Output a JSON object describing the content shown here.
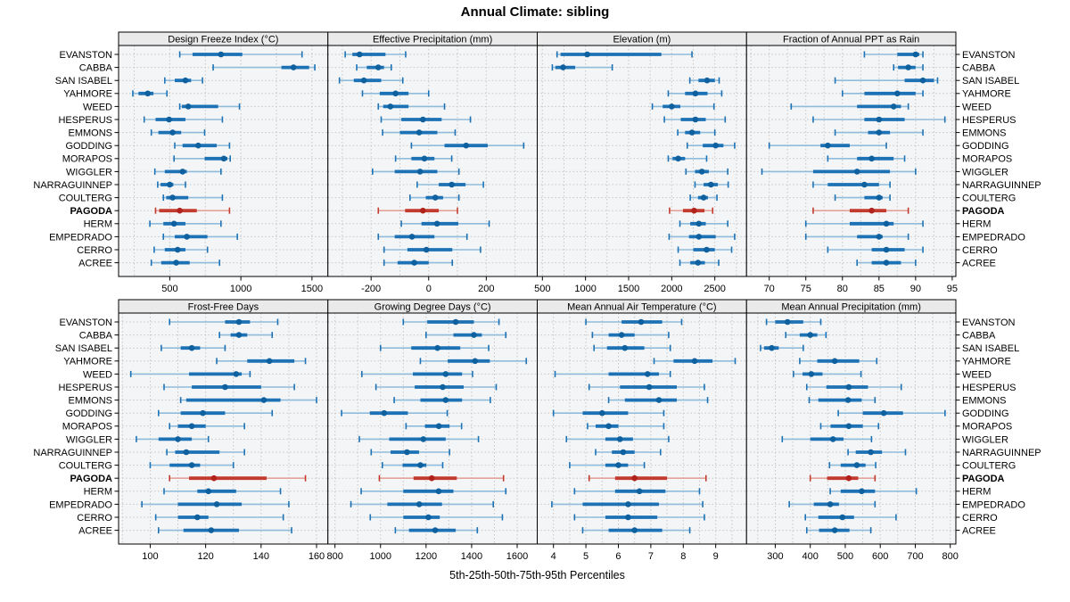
{
  "title": "Annual Climate: sibling",
  "caption": "5th-25th-50th-75th-95th Percentiles",
  "stations": [
    "EVANSTON",
    "CABBA",
    "SAN ISABEL",
    "YAHMORE",
    "WEED",
    "HESPERUS",
    "EMMONS",
    "GODDING",
    "MORAPOS",
    "WIGGLER",
    "NARRAGUINNEP",
    "COULTERG",
    "PAGODA",
    "HERM",
    "EMPEDRADO",
    "CERRO",
    "ACREE"
  ],
  "highlight_station": "PAGODA",
  "colors": {
    "blue": "#1c72b5",
    "blue_dot": "#0e609e",
    "blue_light": "#8fbcdc",
    "red": "#c23b2e",
    "red_dot": "#b1221c",
    "red_light": "#e5a29a",
    "panel_bg": "#f4f5f6",
    "strip_bg": "#eaeaea",
    "grid": "#c6c6c6",
    "frame": "#000000"
  },
  "chart_data": [
    {
      "type": "percentile-dotplot",
      "slug": "design-freeze-index",
      "title": "Design Freeze Index (°C)",
      "xlim": [
        140,
        1612
      ],
      "ticks": [
        500,
        1000,
        1500
      ],
      "grid_start": 250,
      "grid_step": 250,
      "percentiles": [
        "5th",
        "25th",
        "50th",
        "75th",
        "95th"
      ],
      "values": [
        [
          570,
          660,
          860,
          1010,
          1430
        ],
        [
          805,
          1285,
          1370,
          1480,
          1520
        ],
        [
          465,
          535,
          610,
          650,
          730
        ],
        [
          240,
          280,
          345,
          385,
          480
        ],
        [
          570,
          585,
          630,
          840,
          990
        ],
        [
          320,
          400,
          495,
          610,
          870
        ],
        [
          370,
          420,
          520,
          580,
          745
        ],
        [
          535,
          590,
          700,
          830,
          920
        ],
        [
          530,
          745,
          880,
          905,
          925
        ],
        [
          395,
          465,
          590,
          620,
          860
        ],
        [
          415,
          435,
          500,
          525,
          610
        ],
        [
          455,
          475,
          520,
          630,
          870
        ],
        [
          400,
          425,
          570,
          690,
          920
        ],
        [
          360,
          455,
          530,
          610,
          860
        ],
        [
          455,
          535,
          620,
          765,
          975
        ],
        [
          390,
          465,
          555,
          610,
          765
        ],
        [
          370,
          440,
          545,
          640,
          850
        ]
      ]
    },
    {
      "type": "percentile-dotplot",
      "slug": "effective-precipitation",
      "title": "Effective Precipitation (mm)",
      "xlim": [
        -350,
        377
      ],
      "ticks": [
        -200,
        0,
        200
      ],
      "grid_start": -300,
      "grid_step": 100,
      "percentiles": [
        "5th",
        "25th",
        "50th",
        "75th",
        "95th"
      ],
      "values": [
        [
          -290,
          -265,
          -240,
          -150,
          -80
        ],
        [
          -250,
          -215,
          -175,
          -155,
          -130
        ],
        [
          -310,
          -260,
          -225,
          -165,
          -90
        ],
        [
          -230,
          -170,
          -115,
          -70,
          0
        ],
        [
          -175,
          -158,
          -133,
          -70,
          55
        ],
        [
          -165,
          -95,
          -20,
          45,
          145
        ],
        [
          -160,
          -100,
          -33,
          30,
          92
        ],
        [
          -60,
          55,
          130,
          205,
          330
        ],
        [
          -115,
          -60,
          -15,
          20,
          80
        ],
        [
          -195,
          -118,
          -30,
          30,
          105
        ],
        [
          -40,
          35,
          80,
          128,
          190
        ],
        [
          -65,
          -10,
          23,
          50,
          105
        ],
        [
          -175,
          -82,
          -20,
          35,
          100
        ],
        [
          -95,
          -25,
          29,
          103,
          210
        ],
        [
          -175,
          -118,
          -58,
          20,
          133
        ],
        [
          -155,
          -74,
          -8,
          82,
          180
        ],
        [
          -155,
          -108,
          -50,
          0,
          82
        ]
      ]
    },
    {
      "type": "percentile-dotplot",
      "slug": "elevation",
      "title": "Elevation (m)",
      "xlim": [
        440,
        2868
      ],
      "ticks": [
        500,
        1000,
        1500,
        2000,
        2500
      ],
      "grid_start": 500,
      "grid_step": 250,
      "percentiles": [
        "5th",
        "25th",
        "50th",
        "75th",
        "95th"
      ],
      "values": [
        [
          670,
          710,
          1020,
          1880,
          2235
        ],
        [
          615,
          650,
          740,
          880,
          1310
        ],
        [
          2210,
          2310,
          2410,
          2500,
          2550
        ],
        [
          1960,
          2155,
          2275,
          2415,
          2580
        ],
        [
          1775,
          1895,
          2000,
          2100,
          2490
        ],
        [
          1915,
          2105,
          2275,
          2395,
          2620
        ],
        [
          2070,
          2155,
          2235,
          2330,
          2500
        ],
        [
          2180,
          2360,
          2510,
          2600,
          2730
        ],
        [
          1960,
          2010,
          2075,
          2155,
          2405
        ],
        [
          2165,
          2270,
          2350,
          2430,
          2650
        ],
        [
          2270,
          2370,
          2455,
          2535,
          2655
        ],
        [
          2215,
          2305,
          2370,
          2420,
          2525
        ],
        [
          1975,
          2130,
          2260,
          2380,
          2475
        ],
        [
          2095,
          2215,
          2315,
          2395,
          2650
        ],
        [
          1970,
          2200,
          2315,
          2510,
          2730
        ],
        [
          2075,
          2250,
          2405,
          2500,
          2695
        ],
        [
          2095,
          2215,
          2305,
          2385,
          2545
        ]
      ]
    },
    {
      "type": "percentile-dotplot",
      "slug": "fraction-ppt-rain",
      "title": "Fraction of Annual PPT as Rain",
      "xlim": [
        66.9,
        95.5
      ],
      "ticks": [
        70,
        75,
        80,
        85,
        90,
        95
      ],
      "grid_start": 67.5,
      "grid_step": 2.5,
      "percentiles": [
        "5th",
        "25th",
        "50th",
        "75th",
        "95th"
      ],
      "values": [
        [
          83,
          87.5,
          90,
          90.5,
          91
        ],
        [
          87,
          87.6,
          89,
          90,
          91
        ],
        [
          79,
          88.5,
          91,
          92.5,
          93
        ],
        [
          80,
          83,
          87.5,
          90,
          91
        ],
        [
          73,
          82,
          87,
          88,
          89
        ],
        [
          76,
          83,
          85,
          88.5,
          94
        ],
        [
          79,
          83.5,
          85,
          86.5,
          91
        ],
        [
          70,
          77,
          78,
          81,
          86
        ],
        [
          78,
          82,
          84,
          87,
          88.5
        ],
        [
          69,
          76,
          82,
          86.5,
          90
        ],
        [
          76,
          78,
          83,
          85,
          86.5
        ],
        [
          79,
          83,
          85,
          85.5,
          86.5
        ],
        [
          76,
          81,
          84,
          86,
          89
        ],
        [
          75,
          81,
          86,
          87,
          91
        ],
        [
          75,
          82,
          85,
          85.5,
          89
        ],
        [
          78,
          84,
          86,
          88.5,
          91
        ],
        [
          82,
          84,
          86,
          88,
          90
        ]
      ]
    },
    {
      "type": "percentile-dotplot",
      "slug": "frost-free-days",
      "title": "Frost-Free Days",
      "xlim": [
        88.6,
        164.1
      ],
      "ticks": [
        100,
        120,
        140,
        160
      ],
      "grid_start": 90,
      "grid_step": 10,
      "percentiles": [
        "5th",
        "25th",
        "50th",
        "75th",
        "95th"
      ],
      "values": [
        [
          107,
          127,
          132,
          136,
          146
        ],
        [
          125,
          129,
          132,
          135,
          144
        ],
        [
          104,
          111,
          115,
          118,
          127
        ],
        [
          124,
          135,
          143,
          152,
          156
        ],
        [
          93,
          114,
          131,
          133,
          136
        ],
        [
          105,
          115,
          127,
          140,
          152
        ],
        [
          111,
          113,
          141,
          147,
          160
        ],
        [
          103,
          111,
          119,
          127,
          144
        ],
        [
          107,
          110,
          115,
          120,
          134
        ],
        [
          95,
          103,
          110,
          115,
          121
        ],
        [
          106,
          109,
          113,
          125,
          134
        ],
        [
          100,
          107,
          115,
          118,
          130
        ],
        [
          107,
          114,
          123,
          142,
          156
        ],
        [
          105,
          117,
          121,
          131,
          147
        ],
        [
          97,
          110,
          124,
          133,
          150
        ],
        [
          102,
          110,
          117,
          121,
          148
        ],
        [
          103,
          112,
          122,
          132,
          151
        ]
      ]
    },
    {
      "type": "percentile-dotplot",
      "slug": "growing-degree-days",
      "title": "Growing Degree Days (°C)",
      "xlim": [
        769,
        1688
      ],
      "ticks": [
        800,
        1000,
        1200,
        1400,
        1600
      ],
      "grid_start": 800,
      "grid_step": 100,
      "percentiles": [
        "5th",
        "25th",
        "50th",
        "75th",
        "95th"
      ],
      "values": [
        [
          1100,
          1205,
          1330,
          1410,
          1520
        ],
        [
          1200,
          1320,
          1410,
          1445,
          1550
        ],
        [
          1000,
          1135,
          1250,
          1350,
          1475
        ],
        [
          1175,
          1295,
          1415,
          1480,
          1640
        ],
        [
          918,
          1142,
          1286,
          1358,
          1404
        ],
        [
          980,
          1150,
          1273,
          1365,
          1508
        ],
        [
          1060,
          1175,
          1286,
          1358,
          1482
        ],
        [
          829,
          953,
          1016,
          1120,
          1293
        ],
        [
          1112,
          1195,
          1256,
          1303,
          1356
        ],
        [
          907,
          1038,
          1188,
          1286,
          1430
        ],
        [
          959,
          1044,
          1116,
          1169,
          1303
        ],
        [
          1008,
          1097,
          1175,
          1201,
          1273
        ],
        [
          995,
          1145,
          1225,
          1335,
          1540
        ],
        [
          915,
          1100,
          1255,
          1320,
          1550
        ],
        [
          870,
          1030,
          1170,
          1270,
          1495
        ],
        [
          955,
          1100,
          1210,
          1260,
          1535
        ],
        [
          1065,
          1125,
          1240,
          1330,
          1425
        ]
      ]
    },
    {
      "type": "percentile-dotplot",
      "slug": "mean-annual-air-temperature",
      "title": "Mean Annual Air Temperature (°C)",
      "xlim": [
        3.5,
        9.95
      ],
      "ticks": [
        4,
        5,
        6,
        7,
        8,
        9
      ],
      "grid_start": 4,
      "grid_step": 0.5,
      "percentiles": [
        "5th",
        "25th",
        "50th",
        "75th",
        "95th"
      ],
      "values": [
        [
          5.0,
          6.1,
          6.7,
          7.35,
          7.95
        ],
        [
          5.2,
          5.7,
          6.1,
          6.5,
          7.55
        ],
        [
          5.25,
          5.65,
          6.2,
          6.8,
          7.6
        ],
        [
          7.1,
          7.7,
          8.35,
          8.9,
          9.6
        ],
        [
          4.05,
          5.7,
          6.9,
          7.25,
          7.6
        ],
        [
          5.1,
          6.05,
          6.95,
          7.8,
          8.65
        ],
        [
          5.7,
          6.2,
          7.25,
          7.8,
          8.75
        ],
        [
          4.0,
          4.9,
          5.5,
          6.3,
          7.4
        ],
        [
          5.05,
          5.3,
          5.7,
          6.0,
          7.4
        ],
        [
          4.4,
          5.6,
          6.05,
          6.45,
          7.55
        ],
        [
          5.3,
          5.8,
          6.15,
          6.5,
          7.3
        ],
        [
          4.5,
          5.6,
          6.0,
          6.3,
          6.8
        ],
        [
          5.1,
          5.9,
          6.5,
          7.5,
          8.7
        ],
        [
          4.65,
          5.9,
          6.65,
          7.45,
          8.5
        ],
        [
          3.95,
          4.9,
          6.3,
          7.25,
          8.6
        ],
        [
          4.65,
          5.6,
          6.3,
          7.2,
          8.65
        ],
        [
          4.9,
          5.7,
          6.5,
          7.35,
          8.2
        ]
      ]
    },
    {
      "type": "percentile-dotplot",
      "slug": "mean-annual-precipitation",
      "title": "Mean Annual Precipitation (mm)",
      "xlim": [
        218,
        816
      ],
      "ticks": [
        300,
        400,
        500,
        600,
        700,
        800
      ],
      "grid_start": 250,
      "grid_step": 50,
      "percentiles": [
        "5th",
        "25th",
        "50th",
        "75th",
        "95th"
      ],
      "values": [
        [
          275,
          300,
          335,
          380,
          430
        ],
        [
          330,
          370,
          400,
          420,
          445
        ],
        [
          258,
          268,
          290,
          310,
          380
        ],
        [
          370,
          420,
          470,
          540,
          590
        ],
        [
          352,
          378,
          403,
          435,
          545
        ],
        [
          390,
          446,
          510,
          565,
          660
        ],
        [
          397,
          423,
          508,
          547,
          585
        ],
        [
          480,
          550,
          610,
          665,
          785
        ],
        [
          430,
          458,
          510,
          550,
          595
        ],
        [
          320,
          400,
          465,
          495,
          575
        ],
        [
          508,
          530,
          573,
          605,
          672
        ],
        [
          455,
          487,
          533,
          558,
          587
        ],
        [
          400,
          448,
          510,
          537,
          585
        ],
        [
          457,
          487,
          547,
          585,
          703
        ],
        [
          340,
          410,
          457,
          482,
          585
        ],
        [
          386,
          423,
          492,
          525,
          645
        ],
        [
          390,
          425,
          470,
          512,
          573
        ]
      ]
    }
  ]
}
